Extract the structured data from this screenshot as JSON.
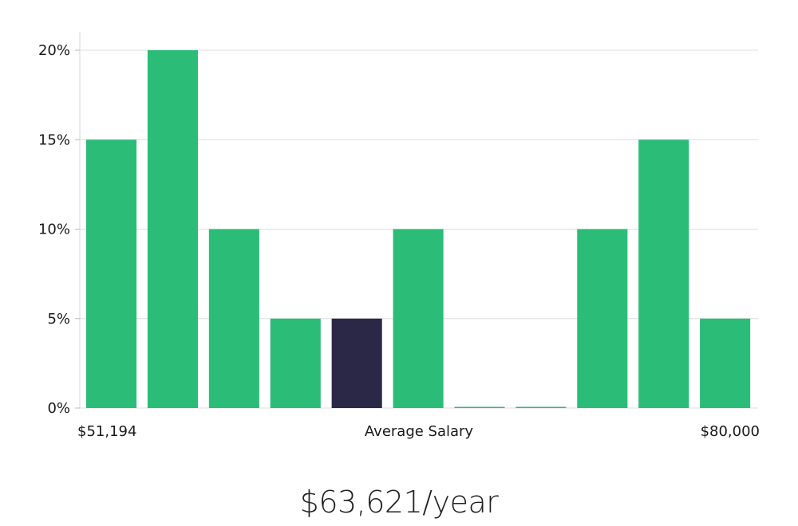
{
  "chart_data": {
    "type": "bar",
    "y_ticks": [
      "0%",
      "5%",
      "10%",
      "15%",
      "20%"
    ],
    "ylim": [
      0,
      20
    ],
    "values": [
      15,
      20,
      10,
      5,
      5,
      10,
      0,
      0,
      10,
      15,
      5
    ],
    "highlight_index": 4,
    "x_left_label": "$51,194",
    "x_center_label": "Average Salary",
    "x_right_label": "$80,000",
    "bar_color": "#2bbd77",
    "highlight_color": "#2a2747",
    "grid": true,
    "grid_color": "#dddddd"
  },
  "footer": {
    "salary_text": "$63,621/year"
  }
}
